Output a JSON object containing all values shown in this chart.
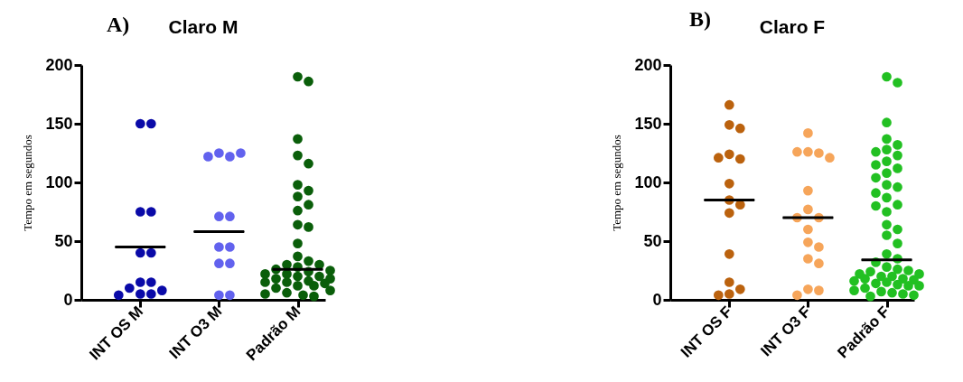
{
  "chart_data": [
    {
      "type": "scatter",
      "title": "Claro M",
      "ylabel": "Tempo em segundos",
      "annotations": [
        "A)"
      ],
      "categories": [
        "INT OS M",
        "INT O3 M",
        "Padrão M"
      ],
      "ylim": [
        0,
        200
      ],
      "yticks": [
        0,
        50,
        100,
        150,
        200
      ],
      "marker": "circle",
      "series": [
        {
          "type": "scatter",
          "color": "#0a0aa8",
          "x": [
            "INT OS M",
            "INT OS M",
            "INT OS M",
            "INT OS M",
            "INT OS M",
            "INT OS M",
            "INT OS M",
            "INT OS M",
            "INT OS M",
            "INT OS M",
            "INT OS M",
            "INT OS M",
            "INT OS M"
          ],
          "values": [
            150,
            150,
            75,
            75,
            40,
            40,
            15,
            15,
            10,
            5,
            5,
            8,
            4
          ]
        },
        {
          "type": "scatter",
          "color": "#6262ee",
          "x": [
            "INT O3 M",
            "INT O3 M",
            "INT O3 M",
            "INT O3 M",
            "INT O3 M",
            "INT O3 M",
            "INT O3 M",
            "INT O3 M",
            "INT O3 M",
            "INT O3 M",
            "INT O3 M",
            "INT O3 M"
          ],
          "values": [
            125,
            122,
            122,
            125,
            71,
            71,
            45,
            45,
            31,
            31,
            4,
            4
          ]
        },
        {
          "type": "scatter",
          "color": "#0a5e0a",
          "x": [
            "Padrão M",
            "Padrão M",
            "Padrão M",
            "Padrão M",
            "Padrão M",
            "Padrão M",
            "Padrão M",
            "Padrão M",
            "Padrão M",
            "Padrão M",
            "Padrão M",
            "Padrão M",
            "Padrão M",
            "Padrão M",
            "Padrão M",
            "Padrão M",
            "Padrão M",
            "Padrão M",
            "Padrão M",
            "Padrão M",
            "Padrão M",
            "Padrão M",
            "Padrão M",
            "Padrão M",
            "Padrão M",
            "Padrão M",
            "Padrão M",
            "Padrão M",
            "Padrão M",
            "Padrão M",
            "Padrão M",
            "Padrão M",
            "Padrão M",
            "Padrão M",
            "Padrão M",
            "Padrão M",
            "Padrão M",
            "Padrão M",
            "Padrão M"
          ],
          "values": [
            190,
            186,
            137,
            123,
            116,
            98,
            93,
            88,
            81,
            76,
            64,
            62,
            48,
            37,
            33,
            30,
            30,
            28,
            26,
            25,
            24,
            22,
            22,
            20,
            20,
            18,
            18,
            16,
            15,
            15,
            14,
            12,
            12,
            10,
            8,
            6,
            5,
            4,
            3
          ]
        },
        {
          "type": "box",
          "color": "#000000",
          "boxes": [
            {
              "low": 45,
              "q1": 45,
              "median": 45,
              "q3": 45,
              "high": 45
            },
            {
              "low": 58,
              "q1": 58,
              "median": 58,
              "q3": 58,
              "high": 58
            },
            {
              "low": 26,
              "q1": 26,
              "median": 26,
              "q3": 26,
              "high": 26
            }
          ]
        }
      ]
    },
    {
      "type": "scatter",
      "title": "Claro F",
      "ylabel": "Tempo em segundos",
      "annotations": [
        "B)"
      ],
      "categories": [
        "INT OS F",
        "INT O3 F",
        "Padrão F"
      ],
      "ylim": [
        0,
        200
      ],
      "yticks": [
        0,
        50,
        100,
        150,
        200
      ],
      "marker": "circle",
      "series": [
        {
          "type": "scatter",
          "color": "#bb620e",
          "x": [
            "INT OS F",
            "INT OS F",
            "INT OS F",
            "INT OS F",
            "INT OS F",
            "INT OS F",
            "INT OS F",
            "INT OS F",
            "INT OS F",
            "INT OS F",
            "INT OS F",
            "INT OS F",
            "INT OS F",
            "INT OS F",
            "INT OS F"
          ],
          "values": [
            166,
            149,
            146,
            124,
            120,
            121,
            99,
            85,
            81,
            74,
            39,
            15,
            9,
            5,
            4
          ]
        },
        {
          "type": "scatter",
          "color": "#f6a55a",
          "x": [
            "INT O3 F",
            "INT O3 F",
            "INT O3 F",
            "INT O3 F",
            "INT O3 F",
            "INT O3 F",
            "INT O3 F",
            "INT O3 F",
            "INT O3 F",
            "INT O3 F",
            "INT O3 F",
            "INT O3 F",
            "INT O3 F",
            "INT O3 F",
            "INT O3 F",
            "INT O3 F",
            "INT O3 F"
          ],
          "values": [
            142,
            126,
            125,
            126,
            121,
            93,
            77,
            70,
            70,
            60,
            49,
            45,
            35,
            31,
            9,
            8,
            4
          ]
        },
        {
          "type": "scatter",
          "color": "#22c022",
          "x": [
            "Padrão F",
            "Padrão F",
            "Padrão F",
            "Padrão F",
            "Padrão F",
            "Padrão F",
            "Padrão F",
            "Padrão F",
            "Padrão F",
            "Padrão F",
            "Padrão F",
            "Padrão F",
            "Padrão F",
            "Padrão F",
            "Padrão F",
            "Padrão F",
            "Padrão F",
            "Padrão F",
            "Padrão F",
            "Padrão F",
            "Padrão F",
            "Padrão F",
            "Padrão F",
            "Padrão F",
            "Padrão F",
            "Padrão F",
            "Padrão F",
            "Padrão F",
            "Padrão F",
            "Padrão F",
            "Padrão F",
            "Padrão F",
            "Padrão F",
            "Padrão F",
            "Padrão F",
            "Padrão F",
            "Padrão F",
            "Padrão F",
            "Padrão F",
            "Padrão F",
            "Padrão F",
            "Padrão F",
            "Padrão F",
            "Padrão F",
            "Padrão F",
            "Padrão F",
            "Padrão F",
            "Padrão F",
            "Padrão F",
            "Padrão F",
            "Padrão F"
          ],
          "values": [
            190,
            185,
            151,
            137,
            132,
            128,
            126,
            123,
            118,
            115,
            112,
            108,
            104,
            98,
            96,
            91,
            87,
            81,
            80,
            75,
            64,
            60,
            55,
            48,
            39,
            35,
            32,
            28,
            26,
            25,
            24,
            22,
            22,
            20,
            20,
            18,
            18,
            17,
            16,
            15,
            14,
            13,
            12,
            12,
            10,
            8,
            7,
            6,
            5,
            4,
            3
          ]
        },
        {
          "type": "box",
          "color": "#000000",
          "boxes": [
            {
              "low": 85,
              "q1": 85,
              "median": 85,
              "q3": 85,
              "high": 85
            },
            {
              "low": 70,
              "q1": 70,
              "median": 70,
              "q3": 70,
              "high": 70
            },
            {
              "low": 34,
              "q1": 34,
              "median": 34,
              "q3": 34,
              "high": 34
            }
          ]
        }
      ]
    }
  ]
}
